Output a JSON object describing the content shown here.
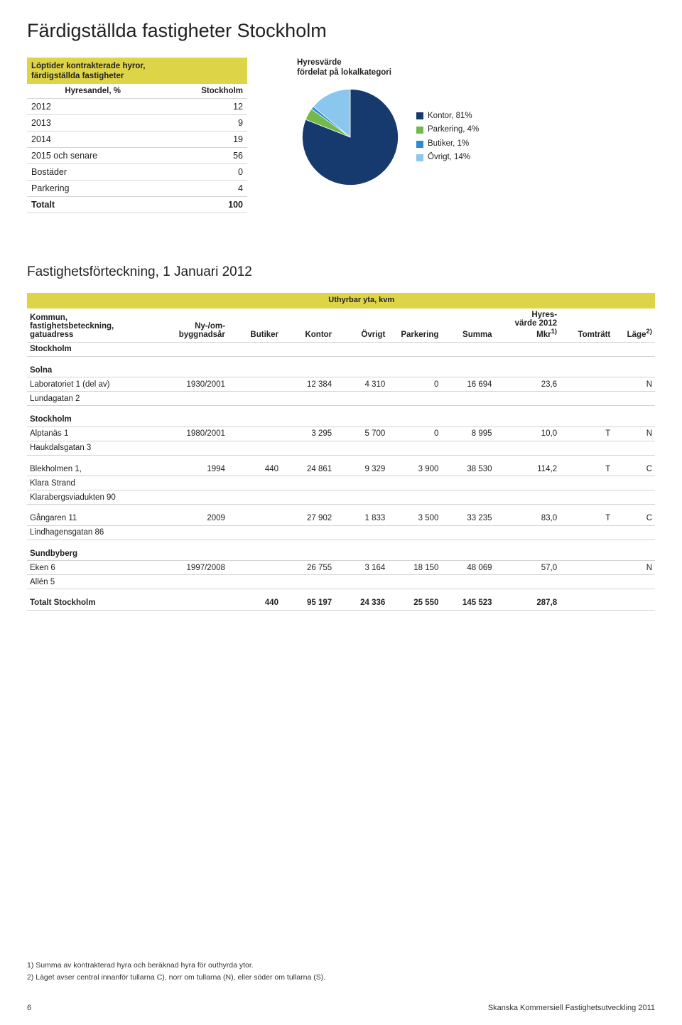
{
  "page_title": "Färdigställda fastigheter Stockholm",
  "loptider": {
    "header_line1": "Löptider kontrakterade hyror,",
    "header_line2": "färdigställda fastigheter",
    "col_label": "Hyresandel, %",
    "col_region": "Stockholm",
    "rows": [
      {
        "label": "2012",
        "value": "12"
      },
      {
        "label": "2013",
        "value": "9"
      },
      {
        "label": "2014",
        "value": "19"
      },
      {
        "label": "2015 och senare",
        "value": "56"
      },
      {
        "label": "Bostäder",
        "value": "0"
      },
      {
        "label": "Parkering",
        "value": "4"
      }
    ],
    "total_label": "Totalt",
    "total_value": "100"
  },
  "pie": {
    "title_line1": "Hyresvärde",
    "title_line2": "fördelat på lokalkategori",
    "slices": [
      {
        "label": "Kontor, 81%",
        "value": 81,
        "color": "#173a6e"
      },
      {
        "label": "Parkering, 4%",
        "value": 4,
        "color": "#74b94b"
      },
      {
        "label": "Butiker, 1%",
        "value": 1,
        "color": "#2b8bd5"
      },
      {
        "label": "Övrigt, 14%",
        "value": 14,
        "color": "#8ac6ee"
      }
    ],
    "background_color": "#ffffff"
  },
  "section_title": "Fastighetsförteckning, 1 Januari 2012",
  "main_table": {
    "spanning_label": "Uthyrbar yta,  kvm",
    "columns": {
      "c0a": "Kommun,",
      "c0b": "fastighetsbeteckning,",
      "c0c": "gatuadress",
      "c1a": "Ny-/om-",
      "c1b": "byggnadsår",
      "c2": "Butiker",
      "c3": "Kontor",
      "c4": "Övrigt",
      "c5": "Parkering",
      "c6": "Summa",
      "c7a": "Hyres-",
      "c7b": "värde 2012",
      "c7c": "Mkr",
      "c7sup": "1)",
      "c8": "Tomträtt",
      "c9": "Läge",
      "c9sup": "2)"
    },
    "region_row": "Stockholm",
    "groups": [
      {
        "name": "Solna",
        "rows": [
          {
            "c0": "Laboratoriet 1 (del av)",
            "c1": "1930/2001",
            "c2": "",
            "c3": "12 384",
            "c4": "4 310",
            "c5": "0",
            "c6": "16 694",
            "c7": "23,6",
            "c8": "",
            "c9": "N"
          },
          {
            "c0": "Lundagatan 2"
          }
        ]
      },
      {
        "name": "Stockholm",
        "rows": [
          {
            "c0": "Alptanäs 1",
            "c1": "1980/2001",
            "c2": "",
            "c3": "3 295",
            "c4": "5 700",
            "c5": "0",
            "c6": "8 995",
            "c7": "10,0",
            "c8": "T",
            "c9": "N"
          },
          {
            "c0": "Haukdalsgatan 3"
          }
        ]
      },
      {
        "name": "",
        "rows": [
          {
            "c0": "Blekholmen 1,",
            "c1": "1994",
            "c2": "440",
            "c3": "24 861",
            "c4": "9 329",
            "c5": "3 900",
            "c6": "38 530",
            "c7": "114,2",
            "c8": "T",
            "c9": "C"
          },
          {
            "c0": "Klara Strand"
          },
          {
            "c0": "Klarabergsviadukten 90"
          }
        ]
      },
      {
        "name": "",
        "rows": [
          {
            "c0": "Gångaren 11",
            "c1": "2009",
            "c2": "",
            "c3": "27 902",
            "c4": "1 833",
            "c5": "3 500",
            "c6": "33 235",
            "c7": "83,0",
            "c8": "T",
            "c9": "C"
          },
          {
            "c0": "Lindhagensgatan 86"
          }
        ]
      },
      {
        "name": "Sundbyberg",
        "rows": [
          {
            "c0": "Eken 6",
            "c1": "1997/2008",
            "c2": "",
            "c3": "26 755",
            "c4": "3 164",
            "c5": "18 150",
            "c6": "48 069",
            "c7": "57,0",
            "c8": "",
            "c9": "N"
          },
          {
            "c0": "Allén 5"
          }
        ]
      }
    ],
    "total_row": {
      "c0": "Totalt Stockholm",
      "c2": "440",
      "c3": "95 197",
      "c4": "24 336",
      "c5": "25 550",
      "c6": "145 523",
      "c7": "287,8"
    }
  },
  "footnotes": {
    "n1": "1) Summa av kontrakterad hyra och beräknad hyra för outhyrda ytor.",
    "n2": "2) Läget avser central innanför tullarna C), norr om tullarna (N), eller söder om tullarna (S)."
  },
  "footer": {
    "page": "6",
    "pub": "Skanska Kommersiell Fastighetsutveckling 2011"
  },
  "colors": {
    "band": "#ded447",
    "border": "#d3d3d3"
  }
}
